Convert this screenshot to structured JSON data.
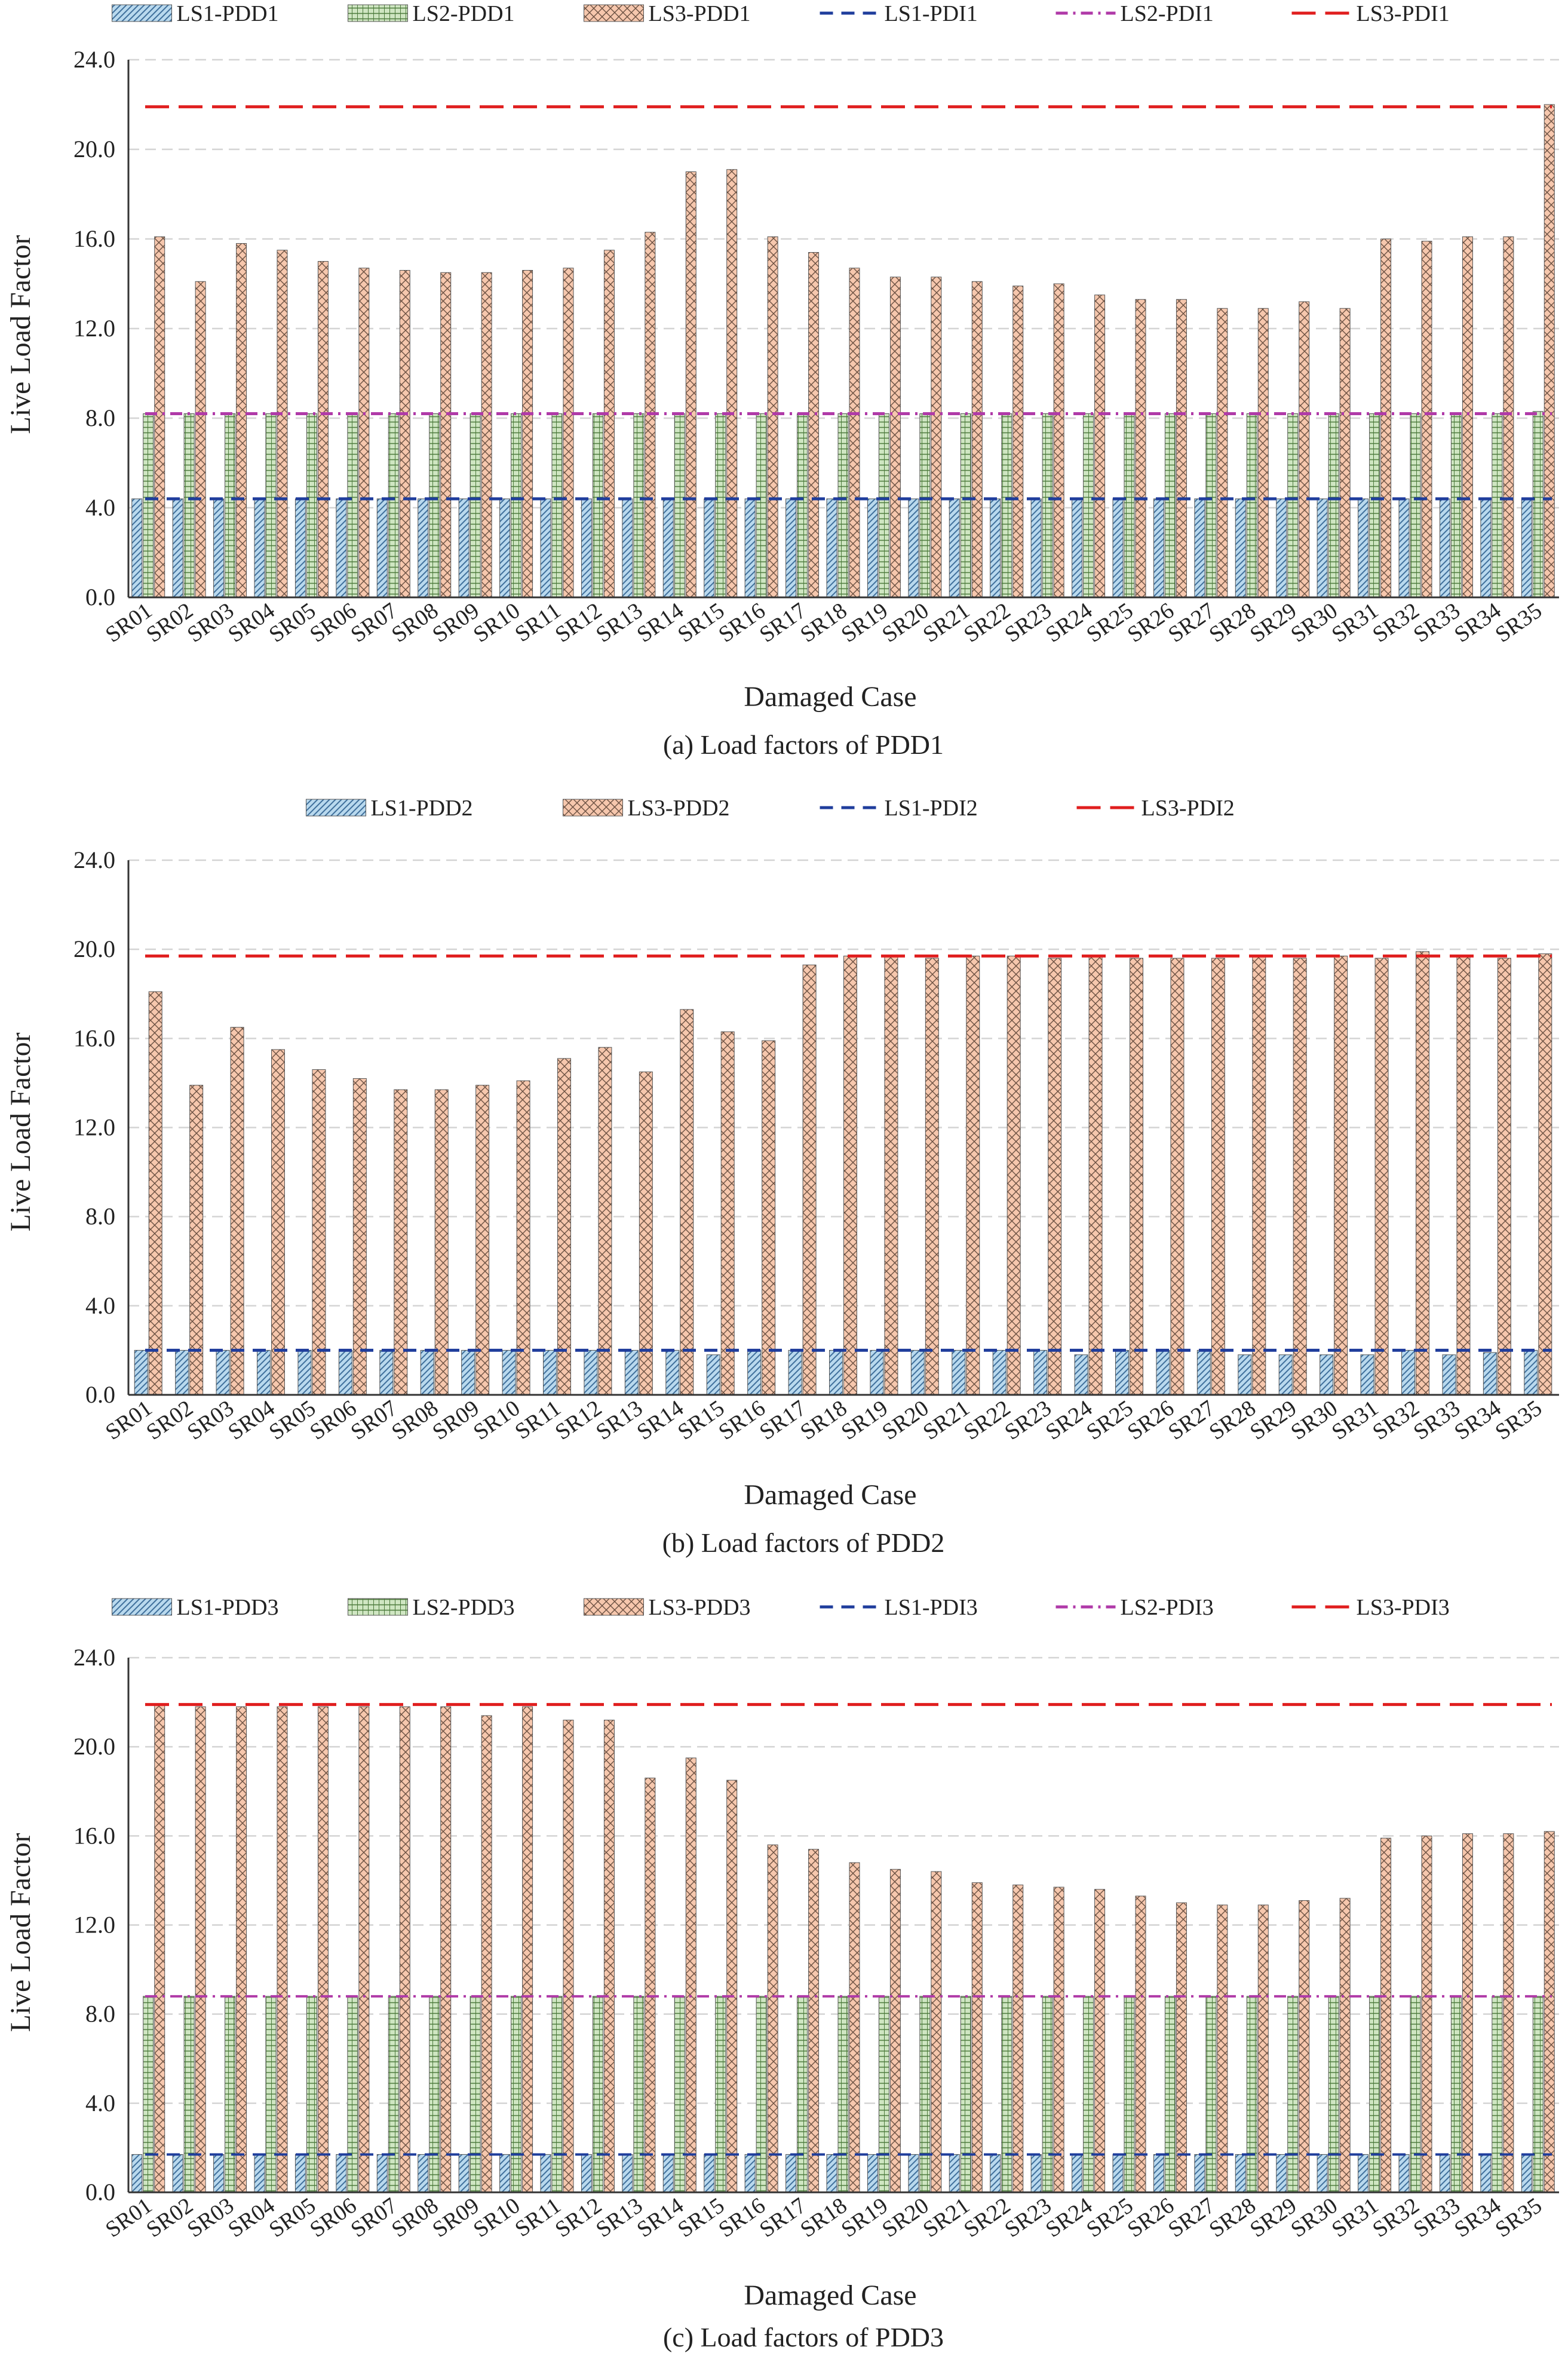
{
  "chart_data": [
    {
      "type": "bar",
      "caption": "(a) Load factors of PDD1",
      "xlabel": "Damaged Case",
      "ylabel": "Live Load Factor",
      "ylim": [
        0,
        24
      ],
      "yticks": [
        "0.0",
        "4.0",
        "8.0",
        "12.0",
        "16.0",
        "20.0",
        "24.0"
      ],
      "categories": [
        "SR01",
        "SR02",
        "SR03",
        "SR04",
        "SR05",
        "SR06",
        "SR07",
        "SR08",
        "SR09",
        "SR10",
        "SR11",
        "SR12",
        "SR13",
        "SR14",
        "SR15",
        "SR16",
        "SR17",
        "SR18",
        "SR19",
        "SR20",
        "SR21",
        "SR22",
        "SR23",
        "SR24",
        "SR25",
        "SR26",
        "SR27",
        "SR28",
        "SR29",
        "SR30",
        "SR31",
        "SR32",
        "SR33",
        "SR34",
        "SR35"
      ],
      "series": [
        {
          "name": "LS1-PDD1",
          "style": "ls1",
          "values": [
            4.4,
            4.4,
            4.4,
            4.4,
            4.4,
            4.4,
            4.4,
            4.4,
            4.4,
            4.4,
            4.4,
            4.4,
            4.4,
            4.4,
            4.4,
            4.4,
            4.4,
            4.4,
            4.4,
            4.4,
            4.4,
            4.4,
            4.4,
            4.4,
            4.4,
            4.4,
            4.4,
            4.4,
            4.4,
            4.4,
            4.4,
            4.4,
            4.4,
            4.4,
            4.4
          ]
        },
        {
          "name": "LS2-PDD1",
          "style": "ls2",
          "values": [
            8.2,
            8.2,
            8.2,
            8.2,
            8.2,
            8.2,
            8.2,
            8.2,
            8.2,
            8.2,
            8.2,
            8.2,
            8.2,
            8.2,
            8.2,
            8.2,
            8.2,
            8.2,
            8.2,
            8.2,
            8.2,
            8.2,
            8.2,
            8.2,
            8.2,
            8.2,
            8.2,
            8.2,
            8.2,
            8.2,
            8.2,
            8.2,
            8.2,
            8.2,
            8.3
          ]
        },
        {
          "name": "LS3-PDD1",
          "style": "ls3",
          "values": [
            16.1,
            14.1,
            15.8,
            15.5,
            15.0,
            14.7,
            14.6,
            14.5,
            14.5,
            14.6,
            14.7,
            15.5,
            16.3,
            19.0,
            19.1,
            16.1,
            15.4,
            14.7,
            14.3,
            14.3,
            14.1,
            13.9,
            14.0,
            13.5,
            13.3,
            13.3,
            12.9,
            12.9,
            13.2,
            12.9,
            16.0,
            15.9,
            16.1,
            16.1,
            22.0
          ]
        }
      ],
      "reference_lines": [
        {
          "name": "LS1-PDI1",
          "value": 4.4,
          "style": "ls1"
        },
        {
          "name": "LS2-PDI1",
          "value": 8.2,
          "style": "ls2"
        },
        {
          "name": "LS3-PDI1",
          "value": 21.9,
          "style": "ls3"
        }
      ],
      "legend": [
        "LS1-PDD1",
        "LS2-PDD1",
        "LS3-PDD1",
        "LS1-PDI1",
        "LS2-PDI1",
        "LS3-PDI1"
      ]
    },
    {
      "type": "bar",
      "caption": "(b) Load factors of PDD2",
      "xlabel": "Damaged Case",
      "ylabel": "Live Load Factor",
      "ylim": [
        0,
        24
      ],
      "yticks": [
        "0.0",
        "4.0",
        "8.0",
        "12.0",
        "16.0",
        "20.0",
        "24.0"
      ],
      "categories": [
        "SR01",
        "SR02",
        "SR03",
        "SR04",
        "SR05",
        "SR06",
        "SR07",
        "SR08",
        "SR09",
        "SR10",
        "SR11",
        "SR12",
        "SR13",
        "SR14",
        "SR15",
        "SR16",
        "SR17",
        "SR18",
        "SR19",
        "SR20",
        "SR21",
        "SR22",
        "SR23",
        "SR24",
        "SR25",
        "SR26",
        "SR27",
        "SR28",
        "SR29",
        "SR30",
        "SR31",
        "SR32",
        "SR33",
        "SR34",
        "SR35"
      ],
      "series": [
        {
          "name": "LS1-PDD2",
          "style": "ls1",
          "values": [
            2.0,
            2.0,
            2.0,
            2.0,
            2.0,
            2.0,
            2.0,
            2.0,
            2.0,
            2.0,
            2.0,
            2.0,
            2.0,
            2.0,
            1.8,
            2.0,
            2.0,
            2.0,
            2.0,
            2.0,
            2.0,
            2.0,
            2.0,
            1.8,
            2.0,
            2.0,
            2.0,
            1.8,
            1.8,
            1.8,
            1.8,
            2.0,
            1.8,
            1.9,
            2.0
          ]
        },
        {
          "name": "LS3-PDD2",
          "style": "ls3",
          "values": [
            18.1,
            13.9,
            16.5,
            15.5,
            14.6,
            14.2,
            13.7,
            13.7,
            13.9,
            14.1,
            15.1,
            15.6,
            14.5,
            17.3,
            16.3,
            15.9,
            19.3,
            19.7,
            19.7,
            19.6,
            19.7,
            19.7,
            19.6,
            19.7,
            19.6,
            19.6,
            19.6,
            19.7,
            19.6,
            19.7,
            19.6,
            19.9,
            19.7,
            19.6,
            19.8
          ]
        }
      ],
      "reference_lines": [
        {
          "name": "LS1-PDI2",
          "value": 2.0,
          "style": "ls1"
        },
        {
          "name": "LS3-PDI2",
          "value": 19.7,
          "style": "ls3"
        }
      ],
      "legend": [
        "LS1-PDD2",
        "LS3-PDD2",
        "LS1-PDI2",
        "LS3-PDI2"
      ]
    },
    {
      "type": "bar",
      "caption": "(c) Load factors of PDD3",
      "xlabel": "Damaged Case",
      "ylabel": "Live Load Factor",
      "ylim": [
        0,
        24
      ],
      "yticks": [
        "0.0",
        "4.0",
        "8.0",
        "12.0",
        "16.0",
        "20.0",
        "24.0"
      ],
      "categories": [
        "SR01",
        "SR02",
        "SR03",
        "SR04",
        "SR05",
        "SR06",
        "SR07",
        "SR08",
        "SR09",
        "SR10",
        "SR11",
        "SR12",
        "SR13",
        "SR14",
        "SR15",
        "SR16",
        "SR17",
        "SR18",
        "SR19",
        "SR20",
        "SR21",
        "SR22",
        "SR23",
        "SR24",
        "SR25",
        "SR26",
        "SR27",
        "SR28",
        "SR29",
        "SR30",
        "SR31",
        "SR32",
        "SR33",
        "SR34",
        "SR35"
      ],
      "series": [
        {
          "name": "LS1-PDD3",
          "style": "ls1",
          "values": [
            1.7,
            1.7,
            1.7,
            1.7,
            1.7,
            1.7,
            1.7,
            1.7,
            1.7,
            1.7,
            1.7,
            1.7,
            1.7,
            1.7,
            1.7,
            1.7,
            1.7,
            1.7,
            1.7,
            1.7,
            1.7,
            1.7,
            1.7,
            1.7,
            1.7,
            1.7,
            1.7,
            1.7,
            1.7,
            1.7,
            1.7,
            1.7,
            1.7,
            1.7,
            1.7
          ]
        },
        {
          "name": "LS2-PDD3",
          "style": "ls2",
          "values": [
            8.8,
            8.8,
            8.8,
            8.8,
            8.8,
            8.8,
            8.8,
            8.8,
            8.8,
            8.8,
            8.8,
            8.8,
            8.8,
            8.8,
            8.8,
            8.8,
            8.8,
            8.8,
            8.8,
            8.8,
            8.8,
            8.8,
            8.8,
            8.8,
            8.8,
            8.8,
            8.8,
            8.8,
            8.8,
            8.8,
            8.8,
            8.8,
            8.8,
            8.8,
            8.8
          ]
        },
        {
          "name": "LS3-PDD3",
          "style": "ls3",
          "values": [
            21.9,
            21.8,
            21.8,
            21.8,
            21.8,
            21.8,
            21.8,
            21.8,
            21.4,
            21.8,
            21.2,
            21.2,
            18.6,
            19.5,
            18.5,
            15.6,
            15.4,
            14.8,
            14.5,
            14.4,
            13.9,
            13.8,
            13.7,
            13.6,
            13.3,
            13.0,
            12.9,
            12.9,
            13.1,
            13.2,
            15.9,
            16.0,
            16.1,
            16.1,
            16.2
          ]
        }
      ],
      "reference_lines": [
        {
          "name": "LS1-PDI3",
          "value": 1.7,
          "style": "ls1"
        },
        {
          "name": "LS2-PDI3",
          "value": 8.8,
          "style": "ls2"
        },
        {
          "name": "LS3-PDI3",
          "value": 21.9,
          "style": "ls3"
        }
      ],
      "legend": [
        "LS1-PDD3",
        "LS2-PDD3",
        "LS3-PDD3",
        "LS1-PDI3",
        "LS2-PDI3",
        "LS3-PDI3"
      ]
    }
  ],
  "colors": {
    "ls1_fill": "#b9d9ee",
    "ls1_line": "#1f3d9c",
    "ls2_fill": "#cfe6c2",
    "ls2_line": "#b03aa8",
    "ls3_fill": "#f6c7ad",
    "ls3_line": "#e01e1e",
    "grid": "#d4d4d4",
    "axis": "#333333"
  }
}
